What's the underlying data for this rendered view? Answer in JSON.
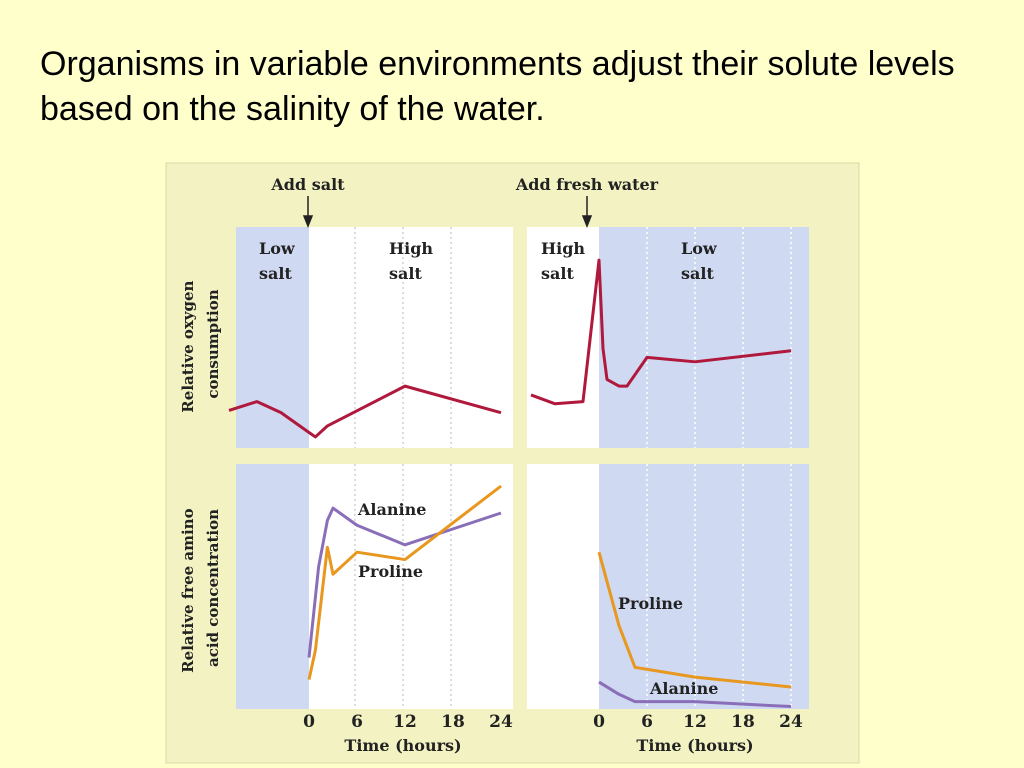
{
  "slide": {
    "title": "Organisms in variable environments adjust their solute levels based on the salinity of the water."
  },
  "figure": {
    "event_labels": [
      "Add salt",
      "Add fresh water"
    ],
    "left_top_phases": [
      "Low\nsalt",
      "High\nsalt"
    ],
    "right_top_phases": [
      "High\nsalt",
      "Low\nsalt"
    ],
    "top_ylabel": "Relative oxygen\nconsumption",
    "bottom_ylabel": "Relative free amino\nacid concentration",
    "xlabel": "Time (hours)",
    "x_ticks": [
      0,
      6,
      12,
      18,
      24
    ]
  },
  "colors": {
    "panel_blue": "#cfd9f2",
    "panel_white": "#ffffff",
    "figure_bg": "#f2f2c2",
    "oxygen_line": "#b0183c",
    "alanine_line": "#8a6fb8",
    "proline_line": "#e8971f"
  },
  "chart_data": [
    {
      "type": "line",
      "panel": "top-left",
      "ylabel": "Relative oxygen\nconsumption",
      "xlim": [
        -10,
        25
      ],
      "ylim": [
        0,
        100
      ],
      "series": [
        {
          "name": "",
          "x": [
            -10,
            -6.5,
            -3.5,
            0,
            0.8,
            2.3,
            12,
            24
          ],
          "y": [
            17,
            21,
            16,
            7,
            5,
            10,
            28,
            16
          ]
        }
      ]
    },
    {
      "type": "line",
      "panel": "top-right",
      "xlim": [
        -8.5,
        25
      ],
      "ylim": [
        0,
        100
      ],
      "series": [
        {
          "name": "",
          "x": [
            -8.5,
            -5.5,
            -2,
            0,
            0.5,
            1,
            2.5,
            3.5,
            6,
            12,
            24
          ],
          "y": [
            24,
            20,
            21,
            85,
            45,
            31,
            28,
            28,
            41,
            39,
            44
          ]
        }
      ]
    },
    {
      "type": "line",
      "panel": "bottom-left",
      "ylabel": "Relative free amino\nacid concentration",
      "xlim": [
        -10,
        25
      ],
      "ylim": [
        0,
        100
      ],
      "series": [
        {
          "name": "Alanine",
          "x": [
            0,
            1.2,
            2.3,
            3,
            6,
            12,
            24
          ],
          "y": [
            21,
            58,
            77,
            82,
            75,
            67,
            80
          ]
        },
        {
          "name": "Proline",
          "x": [
            0,
            0.8,
            2.3,
            3,
            6,
            12,
            24
          ],
          "y": [
            12,
            24,
            66,
            55,
            64,
            61,
            91
          ]
        }
      ]
    },
    {
      "type": "line",
      "panel": "bottom-right",
      "xlim": [
        -8.5,
        25
      ],
      "ylim": [
        0,
        100
      ],
      "series": [
        {
          "name": "Proline",
          "x": [
            0,
            2.5,
            4.5,
            12,
            24
          ],
          "y": [
            64,
            34,
            17,
            13,
            9
          ]
        },
        {
          "name": "Alanine",
          "x": [
            0,
            2.5,
            4.5,
            12,
            24
          ],
          "y": [
            11,
            6,
            3,
            3,
            1
          ]
        }
      ]
    }
  ]
}
